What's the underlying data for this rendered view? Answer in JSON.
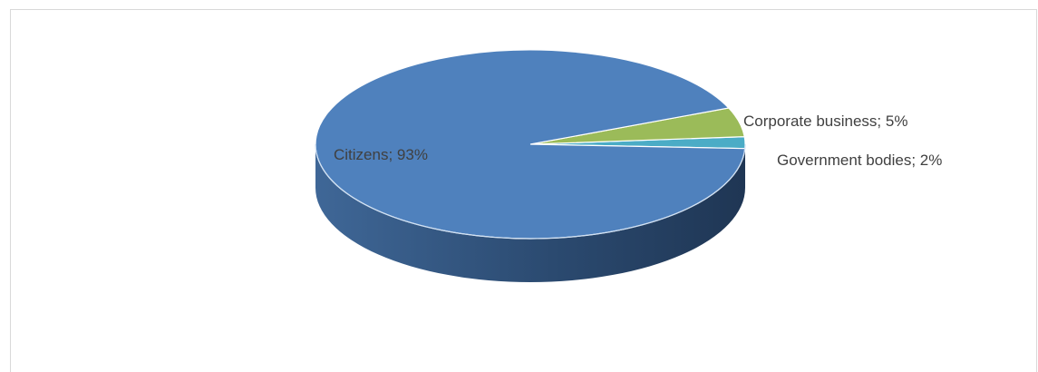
{
  "chart_data": {
    "type": "pie",
    "title": "",
    "categories": [
      "Citizens",
      "Corporate business",
      "Government bodies"
    ],
    "values": [
      93,
      5,
      2
    ],
    "unit": "%",
    "data_labels": [
      "Citizens; 93%",
      "Corporate business; 5%",
      "Government bodies; 2%"
    ],
    "colors": [
      "#4f81bd",
      "#9bbb59",
      "#4bacc6"
    ],
    "style": "3d-pie",
    "legend": "none"
  }
}
